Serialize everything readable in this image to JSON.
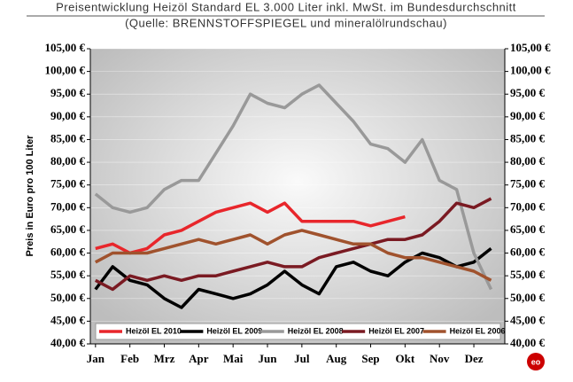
{
  "chart_data": {
    "type": "line",
    "title": "Preisentwicklung Heizöl Standard EL 3.000 Liter inkl. MwSt. im Bundesdurchschnitt",
    "subtitle": "(Quelle: BRENNSTOFFSPIEGEL und mineralölrundschau)",
    "y_label": "Preis in Euro pro 100 Liter",
    "x": [
      0,
      0.5,
      1,
      1.5,
      2,
      2.5,
      3,
      3.5,
      4,
      4.5,
      5,
      5.5,
      6,
      6.5,
      7,
      7.5,
      8,
      8.5,
      9,
      9.5,
      10,
      10.5,
      11,
      11.5
    ],
    "xlim": [
      -0.15,
      11.9
    ],
    "xticks": [
      {
        "value": 0,
        "label": "Jan"
      },
      {
        "value": 1,
        "label": "Feb"
      },
      {
        "value": 2,
        "label": "Mrz"
      },
      {
        "value": 3,
        "label": "Apr"
      },
      {
        "value": 4,
        "label": "Mai"
      },
      {
        "value": 5,
        "label": "Jun"
      },
      {
        "value": 6,
        "label": "Jul"
      },
      {
        "value": 7,
        "label": "Aug"
      },
      {
        "value": 8,
        "label": "Sep"
      },
      {
        "value": 9,
        "label": "Okt"
      },
      {
        "value": 10,
        "label": "Nov"
      },
      {
        "value": 11,
        "label": "Dez"
      }
    ],
    "ylim": [
      40,
      105
    ],
    "yticks": [
      {
        "value": 40,
        "label": "40,00 €"
      },
      {
        "value": 45,
        "label": "45,00 €"
      },
      {
        "value": 50,
        "label": "50,00 €"
      },
      {
        "value": 55,
        "label": "55,00 €"
      },
      {
        "value": 60,
        "label": "60,00 €"
      },
      {
        "value": 65,
        "label": "65,00 €"
      },
      {
        "value": 70,
        "label": "70,00 €"
      },
      {
        "value": 75,
        "label": "75,00 €"
      },
      {
        "value": 80,
        "label": "80,00 €"
      },
      {
        "value": 85,
        "label": "85,00 €"
      },
      {
        "value": 90,
        "label": "90,00 €"
      },
      {
        "value": 95,
        "label": "95,00 €"
      },
      {
        "value": 100,
        "label": "100,00 €"
      },
      {
        "value": 105,
        "label": "105,00 €"
      }
    ],
    "series": [
      {
        "name": "Heizöl EL 2010",
        "color": "#e8262b",
        "values": [
          61,
          62,
          60,
          61,
          64,
          65,
          67,
          69,
          70,
          71,
          69,
          71,
          67,
          67,
          67,
          67,
          66,
          67,
          68,
          null,
          null,
          null,
          null,
          null
        ]
      },
      {
        "name": "Heizöl EL 2009",
        "color": "#000000",
        "values": [
          52,
          57,
          54,
          53,
          50,
          48,
          52,
          51,
          50,
          51,
          53,
          56,
          53,
          51,
          57,
          58,
          56,
          55,
          58,
          60,
          59,
          57,
          58,
          61
        ]
      },
      {
        "name": "Heizöl EL 2008",
        "color": "#999999",
        "values": [
          73,
          70,
          69,
          70,
          74,
          76,
          76,
          82,
          88,
          95,
          93,
          92,
          95,
          97,
          93,
          89,
          84,
          83,
          80,
          85,
          76,
          74,
          60,
          52
        ]
      },
      {
        "name": "Heizöl EL 2007",
        "color": "#7a1a22",
        "values": [
          54,
          52,
          55,
          54,
          55,
          54,
          55,
          55,
          56,
          57,
          58,
          57,
          57,
          59,
          60,
          61,
          62,
          63,
          63,
          64,
          67,
          71,
          70,
          72
        ]
      },
      {
        "name": "Heizöl EL 2006",
        "color": "#a0522d",
        "values": [
          58,
          60,
          60,
          60,
          61,
          62,
          63,
          62,
          63,
          64,
          62,
          64,
          65,
          64,
          63,
          62,
          62,
          60,
          59,
          59,
          58,
          57,
          56,
          54
        ]
      }
    ]
  }
}
